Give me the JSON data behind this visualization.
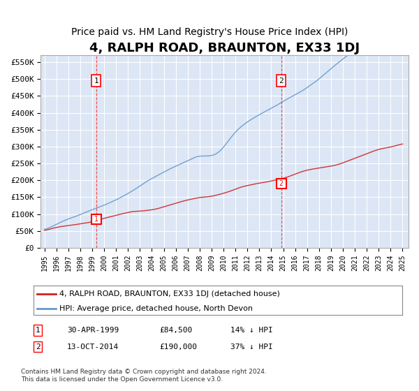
{
  "title": "4, RALPH ROAD, BRAUNTON, EX33 1DJ",
  "subtitle": "Price paid vs. HM Land Registry's House Price Index (HPI)",
  "title_fontsize": 13,
  "subtitle_fontsize": 10,
  "background_color": "#ffffff",
  "plot_bg_color": "#dce6f5",
  "grid_color": "#ffffff",
  "ylim": [
    0,
    570000
  ],
  "yticks": [
    0,
    50000,
    100000,
    150000,
    200000,
    250000,
    300000,
    350000,
    400000,
    450000,
    500000,
    550000
  ],
  "ytick_labels": [
    "£0",
    "£50K",
    "£100K",
    "£150K",
    "£200K",
    "£250K",
    "£300K",
    "£350K",
    "£400K",
    "£450K",
    "£500K",
    "£550K"
  ],
  "hpi_color": "#6699cc",
  "price_color": "#cc2222",
  "marker1_date_idx": 4.33,
  "marker2_date_idx": 19.75,
  "marker1_price": 84500,
  "marker2_price": 190000,
  "marker1_label": "1",
  "marker2_label": "2",
  "legend_line1": "4, RALPH ROAD, BRAUNTON, EX33 1DJ (detached house)",
  "legend_line2": "HPI: Average price, detached house, North Devon",
  "table_row1": [
    "1",
    "30-APR-1999",
    "£84,500",
    "14% ↓ HPI"
  ],
  "table_row2": [
    "2",
    "13-OCT-2014",
    "£190,000",
    "37% ↓ HPI"
  ],
  "footnote": "Contains HM Land Registry data © Crown copyright and database right 2024.\nThis data is licensed under the Open Government Licence v3.0.",
  "x_start_year": 1995,
  "x_end_year": 2025
}
